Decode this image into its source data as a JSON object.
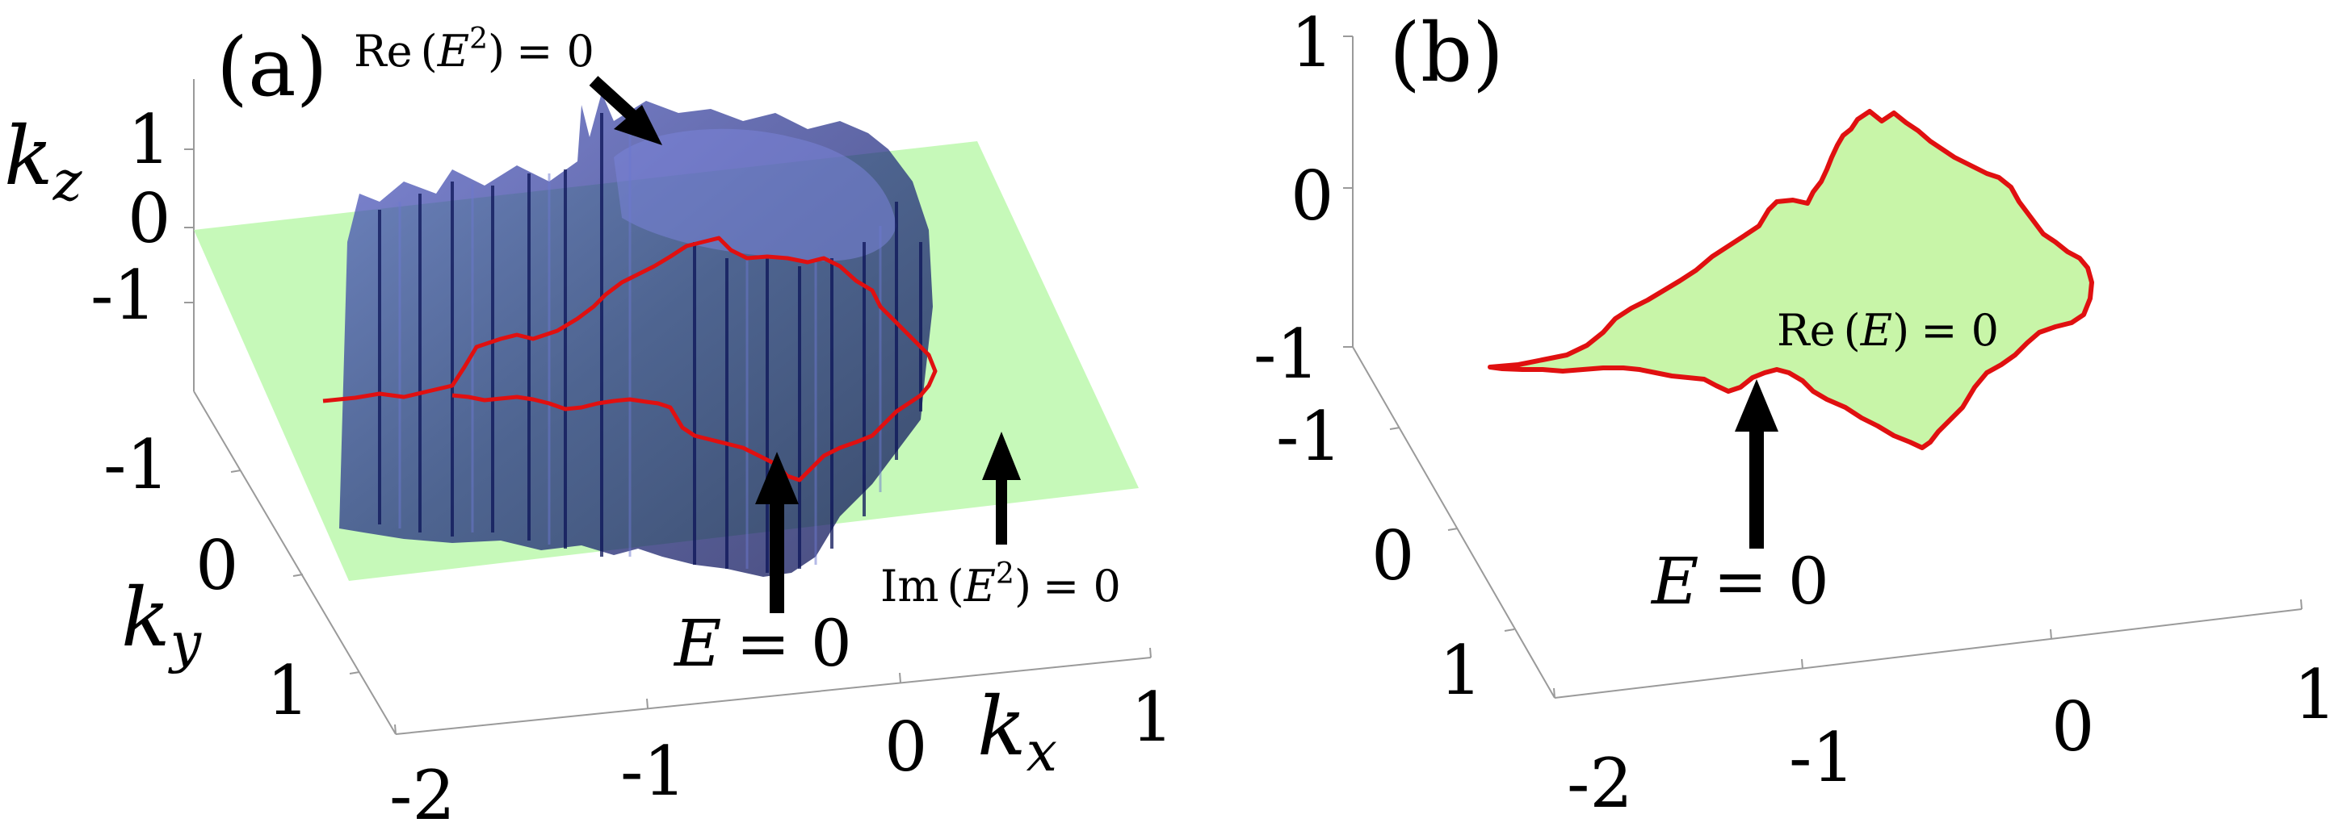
{
  "panel_a": {
    "label": "(a)",
    "annotations": {
      "re_e2": {
        "prefix": "Re",
        "lparen": "(",
        "var": "E",
        "sup": "2",
        "rparen": ")",
        "eq": "= 0"
      },
      "im_e2": {
        "prefix": "Im",
        "lparen": "(",
        "var": "E",
        "sup": "2",
        "rparen": ")",
        "eq": "= 0"
      },
      "e_zero": {
        "var": "E",
        "eq": "= 0"
      }
    },
    "axes": {
      "kz": {
        "label_main": "k",
        "label_sub": "z",
        "ticks": [
          "1",
          "0",
          "-1"
        ]
      },
      "ky": {
        "label_main": "k",
        "label_sub": "y",
        "ticks": [
          "-1",
          "0",
          "1"
        ]
      },
      "kx": {
        "label_main": "k",
        "label_sub": "x",
        "ticks": [
          "-2",
          "-1",
          "0",
          "1"
        ]
      }
    },
    "colors": {
      "plane": "#b8f7a8",
      "surface": "#1f2a8a",
      "contour": "#e01010"
    }
  },
  "panel_b": {
    "label": "(b)",
    "annotations": {
      "re_e": {
        "prefix": "Re",
        "lparen": "(",
        "var": "E",
        "rparen": ")",
        "eq": "= 0"
      },
      "e_zero": {
        "var": "E",
        "eq": "= 0"
      }
    },
    "axes": {
      "z_ticks": [
        "1",
        "0",
        "-1"
      ],
      "y_ticks": [
        "-1",
        "0",
        "1"
      ],
      "x_ticks": [
        "-2",
        "-1",
        "0",
        "1"
      ]
    },
    "colors": {
      "fill": "#c8f5a8",
      "contour": "#e01010"
    }
  }
}
